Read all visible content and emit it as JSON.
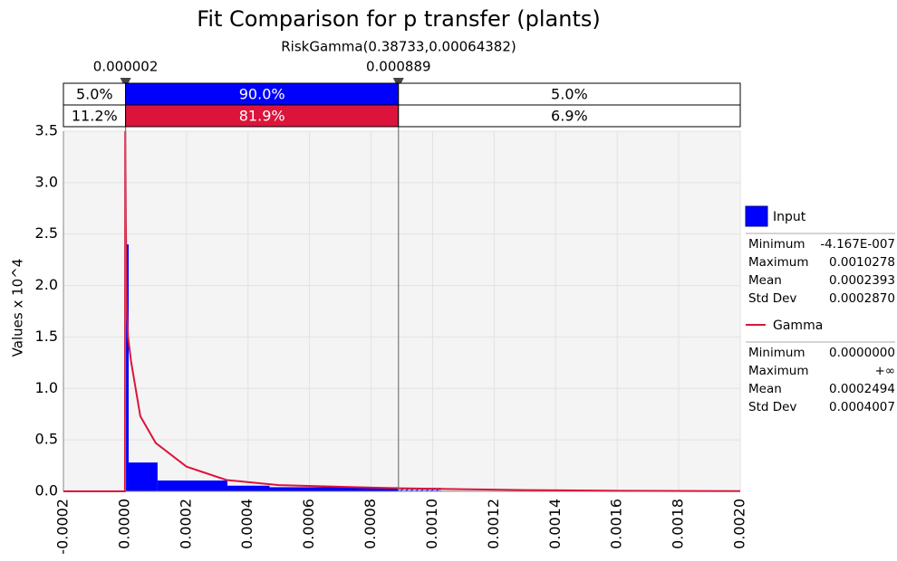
{
  "chart_data": {
    "type": "histogram",
    "title": "Fit Comparison for p transfer (plants)",
    "subtitle": "RiskGamma(0.38733,0.00064382)",
    "ylabel": "Values x 10^4",
    "xlim": [
      -0.0002,
      0.002
    ],
    "ylim": [
      0,
      3.5
    ],
    "xticks": [
      {
        "value": -0.0002,
        "label": "-0.0002"
      },
      {
        "value": 0,
        "label": "0.0000"
      },
      {
        "value": 0.0002,
        "label": "0.0002"
      },
      {
        "value": 0.0004,
        "label": "0.0004"
      },
      {
        "value": 0.0006,
        "label": "0.0006"
      },
      {
        "value": 0.0008,
        "label": "0.0008"
      },
      {
        "value": 0.001,
        "label": "0.0010"
      },
      {
        "value": 0.0012,
        "label": "0.0012"
      },
      {
        "value": 0.0014,
        "label": "0.0014"
      },
      {
        "value": 0.0016,
        "label": "0.0016"
      },
      {
        "value": 0.0018,
        "label": "0.0018"
      },
      {
        "value": 0.002,
        "label": "0.0020"
      }
    ],
    "yticks": [
      {
        "value": 0,
        "label": "0.0"
      },
      {
        "value": 0.5,
        "label": "0.5"
      },
      {
        "value": 1,
        "label": "1.0"
      },
      {
        "value": 1.5,
        "label": "1.5"
      },
      {
        "value": 2,
        "label": "2.0"
      },
      {
        "value": 2.5,
        "label": "2.5"
      },
      {
        "value": 3,
        "label": "3.0"
      },
      {
        "value": 3.5,
        "label": "3.5"
      }
    ],
    "grid": true,
    "delimiters": [
      {
        "value": 2e-06,
        "label": "0.000002"
      },
      {
        "value": 0.000889,
        "label": "0.000889"
      }
    ],
    "bands": [
      {
        "color": "#0000ff",
        "values": [
          5.0,
          90.0,
          5.0
        ],
        "value_labels": [
          "5.0%",
          "90.0%",
          "5.0%"
        ]
      },
      {
        "color": "#dc143c",
        "values": [
          11.2,
          81.9,
          6.9
        ],
        "value_labels": [
          "11.2%",
          "81.9%",
          "6.9%"
        ]
      }
    ],
    "bins": [
      -4e-07,
      1.2e-05,
      0.000106,
      0.000333,
      0.00047,
      0.000889,
      0.0010278
    ],
    "counts": [
      2.4,
      0.28,
      0.105,
      0.055,
      0.04,
      0.035
    ],
    "histogram_color": "#0000ff",
    "curve": {
      "name": "Gamma",
      "color": "#dc143c",
      "x": [
        -0.0002,
        0,
        1e-06,
        3e-06,
        6e-06,
        1e-05,
        2e-05,
        5e-05,
        0.0001,
        0.0002,
        0.00033,
        0.0005,
        0.00089,
        0.0013,
        0.0016,
        0.002
      ],
      "values": [
        0,
        0,
        3.5,
        2.6,
        1.8,
        1.5,
        1.26,
        0.73,
        0.47,
        0.24,
        0.11,
        0.06,
        0.03,
        0.012,
        0.006,
        0.002
      ]
    },
    "legend": [
      {
        "name": "Input",
        "stats": [
          [
            "Minimum",
            "-4.167E-007"
          ],
          [
            "Maximum",
            "0.0010278"
          ],
          [
            "Mean",
            "0.0002393"
          ],
          [
            "Std Dev",
            "0.0002870"
          ]
        ]
      },
      {
        "name": "Gamma",
        "stats": [
          [
            "Minimum",
            "0.0000000"
          ],
          [
            "Maximum",
            "+∞"
          ],
          [
            "Mean",
            "0.0002494"
          ],
          [
            "Std Dev",
            "0.0004007"
          ]
        ]
      }
    ]
  }
}
